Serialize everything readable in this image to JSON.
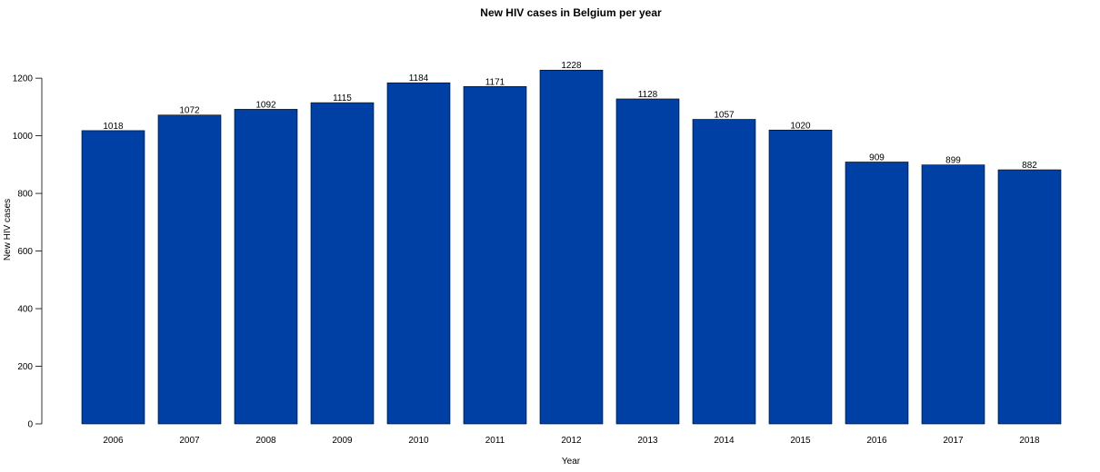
{
  "chart_data": {
    "type": "bar",
    "title": "New HIV cases in Belgium per year",
    "xlabel": "Year",
    "ylabel": "New HIV cases",
    "categories": [
      "2006",
      "2007",
      "2008",
      "2009",
      "2010",
      "2011",
      "2012",
      "2013",
      "2014",
      "2015",
      "2016",
      "2017",
      "2018"
    ],
    "values": [
      1018,
      1072,
      1092,
      1115,
      1184,
      1171,
      1228,
      1128,
      1057,
      1020,
      909,
      899,
      882
    ],
    "value_labels": [
      "1018",
      "1072",
      "1092",
      "1115",
      "1184",
      "1171",
      "1228",
      "1128",
      "1057",
      "1020",
      "909",
      "899",
      "882"
    ],
    "ylim": [
      0,
      1228
    ],
    "yticks": [
      0,
      200,
      400,
      600,
      800,
      1000,
      1200
    ],
    "ytick_labels": [
      "0",
      "200",
      "400",
      "600",
      "800",
      "1000",
      "1200"
    ],
    "bar_color": "#003fa3",
    "grid": false,
    "legend": "none"
  }
}
